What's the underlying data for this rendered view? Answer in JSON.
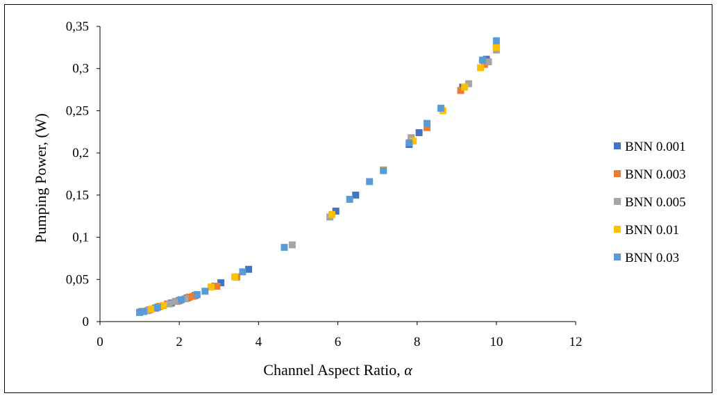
{
  "chart_data": {
    "type": "scatter",
    "xlabel": "Channel Aspect Ratio, ",
    "xlabel_symbol": "α",
    "ylabel": "Pumping Power, (W)",
    "xlim": [
      0,
      12
    ],
    "ylim": [
      0,
      0.35
    ],
    "x_ticks": [
      "0",
      "2",
      "4",
      "6",
      "8",
      "10",
      "12"
    ],
    "y_ticks": [
      "0",
      "0,05",
      "0,1",
      "0,15",
      "0,2",
      "0,25",
      "0,3",
      "0,35"
    ],
    "grid": false,
    "legend_position": "right",
    "series": [
      {
        "name": "BNN 0.001",
        "color": "#4472C4",
        "points": [
          [
            1.0,
            0.011
          ],
          [
            1.1,
            0.012
          ],
          [
            1.2,
            0.013
          ],
          [
            1.4,
            0.016
          ],
          [
            1.6,
            0.019
          ],
          [
            1.8,
            0.022
          ],
          [
            2.0,
            0.025
          ],
          [
            2.2,
            0.028
          ],
          [
            2.4,
            0.031
          ],
          [
            2.9,
            0.042
          ],
          [
            3.05,
            0.046
          ],
          [
            3.45,
            0.053
          ],
          [
            3.75,
            0.062
          ],
          [
            5.95,
            0.131
          ],
          [
            6.45,
            0.15
          ],
          [
            7.8,
            0.21
          ],
          [
            8.05,
            0.224
          ],
          [
            9.15,
            0.278
          ],
          [
            9.75,
            0.311
          ]
        ]
      },
      {
        "name": "BNN 0.003",
        "color": "#ED7D31",
        "points": [
          [
            1.05,
            0.012
          ],
          [
            1.25,
            0.014
          ],
          [
            1.5,
            0.018
          ],
          [
            1.7,
            0.021
          ],
          [
            1.95,
            0.024
          ],
          [
            2.25,
            0.029
          ],
          [
            2.35,
            0.03
          ],
          [
            2.95,
            0.042
          ],
          [
            3.45,
            0.053
          ],
          [
            8.25,
            0.23
          ],
          [
            9.1,
            0.274
          ],
          [
            9.7,
            0.305
          ],
          [
            10.0,
            0.325
          ]
        ]
      },
      {
        "name": "BNN 0.005",
        "color": "#A5A5A5",
        "points": [
          [
            1.0,
            0.011
          ],
          [
            1.2,
            0.013
          ],
          [
            1.45,
            0.017
          ],
          [
            1.75,
            0.021
          ],
          [
            1.9,
            0.024
          ],
          [
            2.15,
            0.027
          ],
          [
            4.85,
            0.091
          ],
          [
            5.8,
            0.124
          ],
          [
            7.85,
            0.218
          ],
          [
            9.3,
            0.282
          ],
          [
            9.8,
            0.308
          ],
          [
            10.0,
            0.322
          ]
        ]
      },
      {
        "name": "BNN 0.01",
        "color": "#FFC000",
        "points": [
          [
            1.3,
            0.015
          ],
          [
            1.6,
            0.019
          ],
          [
            2.8,
            0.041
          ],
          [
            3.4,
            0.053
          ],
          [
            5.85,
            0.127
          ],
          [
            7.15,
            0.18
          ],
          [
            7.9,
            0.214
          ],
          [
            8.65,
            0.25
          ],
          [
            9.2,
            0.278
          ],
          [
            9.6,
            0.301
          ],
          [
            10.0,
            0.325
          ]
        ]
      },
      {
        "name": "BNN 0.03",
        "color": "#5B9BD5",
        "points": [
          [
            1.0,
            0.011
          ],
          [
            1.1,
            0.012
          ],
          [
            1.45,
            0.017
          ],
          [
            2.05,
            0.026
          ],
          [
            2.45,
            0.032
          ],
          [
            2.65,
            0.036
          ],
          [
            3.6,
            0.059
          ],
          [
            4.65,
            0.088
          ],
          [
            6.3,
            0.145
          ],
          [
            6.8,
            0.166
          ],
          [
            7.15,
            0.179
          ],
          [
            7.8,
            0.212
          ],
          [
            8.25,
            0.235
          ],
          [
            8.6,
            0.253
          ],
          [
            9.65,
            0.31
          ],
          [
            10.0,
            0.333
          ]
        ]
      }
    ]
  }
}
